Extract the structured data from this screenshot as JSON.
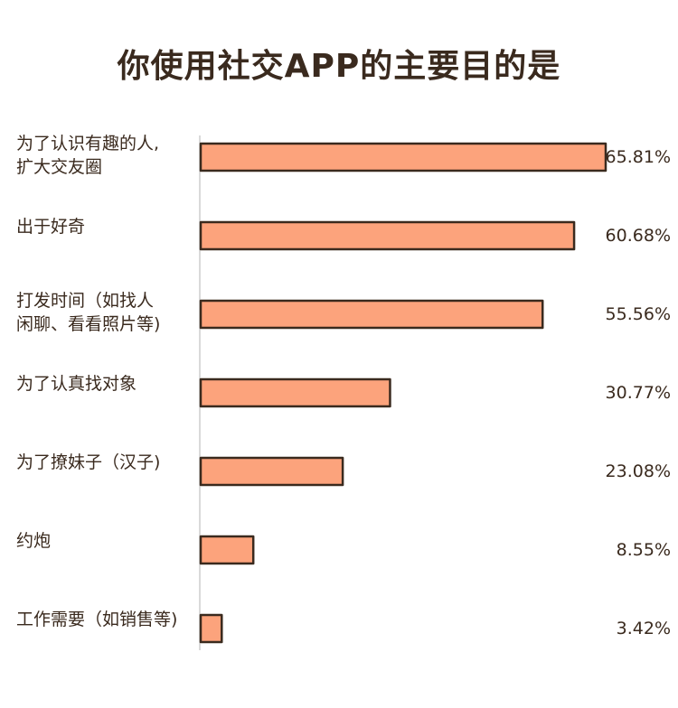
{
  "chart_data": {
    "type": "bar",
    "orientation": "horizontal",
    "title": "你使用社交APP的主要目的是",
    "categories": [
      [
        "为了认识有趣的人,",
        "扩大交友圈"
      ],
      [
        "出于好奇"
      ],
      [
        "打发时间（如找人",
        "闲聊、看看照片等)"
      ],
      [
        "为了认真找对象"
      ],
      [
        "为了撩妹子（汉子)"
      ],
      [
        "约炮"
      ],
      [
        "工作需要（如销售等)"
      ]
    ],
    "values": [
      65.81,
      60.68,
      55.56,
      30.77,
      23.08,
      8.55,
      3.42
    ],
    "value_labels": [
      "65.81%",
      "60.68%",
      "55.56%",
      "30.77%",
      "23.08%",
      "8.55%",
      "3.42%"
    ],
    "xlim": [
      0,
      65.81
    ],
    "grid": false,
    "colors": {
      "bar": "#fca37c",
      "outline": "#3a2a1e",
      "axis": "#d9d9d9"
    }
  }
}
